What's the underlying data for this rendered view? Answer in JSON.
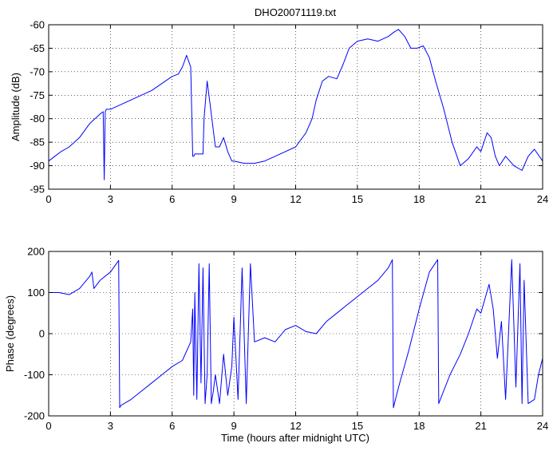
{
  "colors": {
    "series": "#0000ff",
    "axes": "#000000",
    "grid": "#000000",
    "background": "#ffffff"
  },
  "chart_data": [
    {
      "type": "line",
      "title": "DHO20071119.txt",
      "xlabel": "",
      "ylabel": "Amplitude (dB)",
      "xlim": [
        0,
        24
      ],
      "ylim": [
        -95,
        -60
      ],
      "xticks": [
        0,
        3,
        6,
        9,
        12,
        15,
        18,
        21,
        24
      ],
      "yticks": [
        -95,
        -90,
        -85,
        -80,
        -75,
        -70,
        -65,
        -60
      ],
      "grid": true,
      "series": [
        {
          "x": [
            0,
            0.3,
            0.6,
            1.0,
            1.5,
            2.0,
            2.5,
            2.65,
            2.7,
            2.75,
            2.8,
            3.0,
            3.5,
            4.0,
            4.5,
            5.0,
            5.5,
            6.0,
            6.3,
            6.5,
            6.7,
            6.9,
            7.0,
            7.05,
            7.1,
            7.5,
            7.55,
            7.7,
            7.9,
            8.1,
            8.3,
            8.5,
            8.7,
            8.9,
            9.0,
            9.5,
            10.0,
            10.5,
            11.0,
            11.5,
            12.0,
            12.5,
            12.8,
            13.0,
            13.3,
            13.6,
            14.0,
            14.3,
            14.6,
            15.0,
            15.5,
            16.0,
            16.5,
            16.8,
            17.0,
            17.3,
            17.6,
            17.9,
            18.2,
            18.5,
            18.8,
            19.2,
            19.6,
            20.0,
            20.4,
            20.8,
            21.0,
            21.3,
            21.5,
            21.7,
            21.9,
            22.2,
            22.6,
            23.0,
            23.3,
            23.6,
            24.0
          ],
          "y": [
            -89,
            -88,
            -87,
            -86,
            -84,
            -81,
            -79,
            -78.5,
            -93,
            -78.5,
            -78,
            -78,
            -77,
            -76,
            -75,
            -74,
            -72.5,
            -71,
            -70.5,
            -69,
            -66.5,
            -69,
            -88,
            -88,
            -87.5,
            -87.5,
            -80,
            -72,
            -79,
            -86,
            -86,
            -84,
            -87,
            -89,
            -89,
            -89.5,
            -89.5,
            -89,
            -88,
            -87,
            -86,
            -83,
            -80,
            -76,
            -72,
            -71,
            -71.5,
            -68.5,
            -65,
            -63.5,
            -63,
            -63.5,
            -62.5,
            -61.5,
            -61,
            -62.5,
            -65,
            -65,
            -64.5,
            -67,
            -72,
            -78,
            -85,
            -90,
            -88.5,
            -86,
            -87,
            -83,
            -84,
            -88,
            -90,
            -88,
            -90,
            -91,
            -88,
            -86.5,
            -89
          ]
        }
      ]
    },
    {
      "type": "line",
      "title": "",
      "xlabel": "Time (hours after midnight UTC)",
      "ylabel": "Phase (degrees)",
      "xlim": [
        0,
        24
      ],
      "ylim": [
        -200,
        200
      ],
      "xticks": [
        0,
        3,
        6,
        9,
        12,
        15,
        18,
        21,
        24
      ],
      "yticks": [
        -200,
        -100,
        0,
        100,
        200
      ],
      "grid": true,
      "series": [
        {
          "x": [
            0,
            0.5,
            1.0,
            1.5,
            2.0,
            2.1,
            2.2,
            2.5,
            3.0,
            3.4,
            3.45,
            3.5,
            4.0,
            4.5,
            5.0,
            5.5,
            6.0,
            6.5,
            6.9,
            7.0,
            7.05,
            7.1,
            7.2,
            7.3,
            7.4,
            7.5,
            7.6,
            7.7,
            7.8,
            7.9,
            8.0,
            8.1,
            8.3,
            8.5,
            8.7,
            8.9,
            9.0,
            9.2,
            9.4,
            9.6,
            9.8,
            10.0,
            10.5,
            11.0,
            11.5,
            12.0,
            12.5,
            13.0,
            13.5,
            14.0,
            14.5,
            15.0,
            15.5,
            16.0,
            16.5,
            16.7,
            16.75,
            17.0,
            17.5,
            18.0,
            18.5,
            18.9,
            18.95,
            19.5,
            20.0,
            20.4,
            20.8,
            21.0,
            21.4,
            21.6,
            21.8,
            22.0,
            22.2,
            22.5,
            22.7,
            22.9,
            23.0,
            23.1,
            23.3,
            23.6,
            23.8,
            24.0
          ],
          "y": [
            100,
            100,
            95,
            110,
            140,
            150,
            110,
            130,
            150,
            178,
            -180,
            -175,
            -160,
            -140,
            -120,
            -100,
            -80,
            -65,
            -20,
            60,
            -150,
            100,
            -160,
            170,
            -120,
            160,
            -170,
            -100,
            170,
            -170,
            -140,
            -100,
            -170,
            -50,
            -150,
            -80,
            40,
            -160,
            160,
            -170,
            170,
            -20,
            -10,
            -20,
            10,
            20,
            5,
            0,
            30,
            50,
            70,
            90,
            110,
            130,
            160,
            180,
            -180,
            -130,
            -40,
            60,
            150,
            180,
            -170,
            -100,
            -50,
            0,
            60,
            50,
            120,
            60,
            -60,
            30,
            -160,
            180,
            -130,
            170,
            -170,
            130,
            -170,
            -160,
            -100,
            -60
          ]
        }
      ]
    }
  ]
}
